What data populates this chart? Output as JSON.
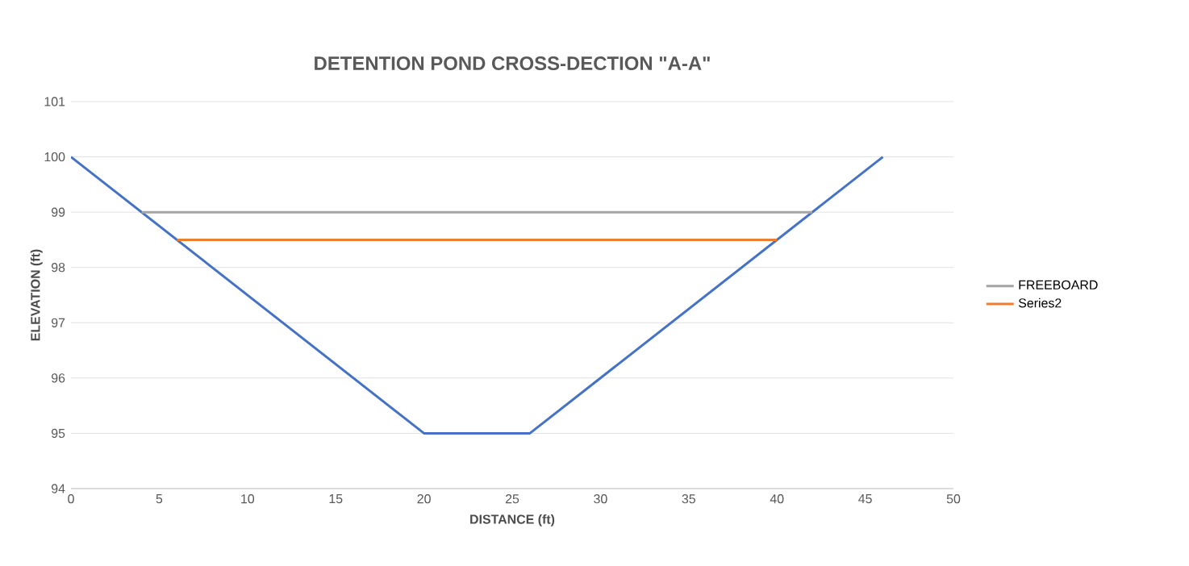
{
  "chart_data": {
    "type": "line",
    "title": "DETENTION POND CROSS-DECTION \"A-A\"",
    "xlabel": "DISTANCE (ft)",
    "ylabel": "ELEVATION (ft)",
    "series": [
      {
        "color": "#4472c4",
        "x": [
          0,
          20,
          26,
          46
        ],
        "values": [
          100,
          95,
          95,
          100
        ]
      },
      {
        "name": "FREEBOARD",
        "color": "#a5a5a5",
        "x": [
          4,
          42
        ],
        "values": [
          99,
          99
        ]
      },
      {
        "name": "Series2",
        "color": "#ed7d31",
        "x": [
          6,
          40
        ],
        "values": [
          98.5,
          98.5
        ]
      }
    ],
    "xlim": [
      0,
      50
    ],
    "xticks": [
      0,
      5,
      10,
      15,
      20,
      25,
      30,
      35,
      40,
      45,
      50
    ],
    "ylim": [
      94,
      101
    ],
    "yticks": [
      94,
      95,
      96,
      97,
      98,
      99,
      100,
      101
    ],
    "grid": "y",
    "legend": "right",
    "marker": "none",
    "line_style": "solid"
  }
}
